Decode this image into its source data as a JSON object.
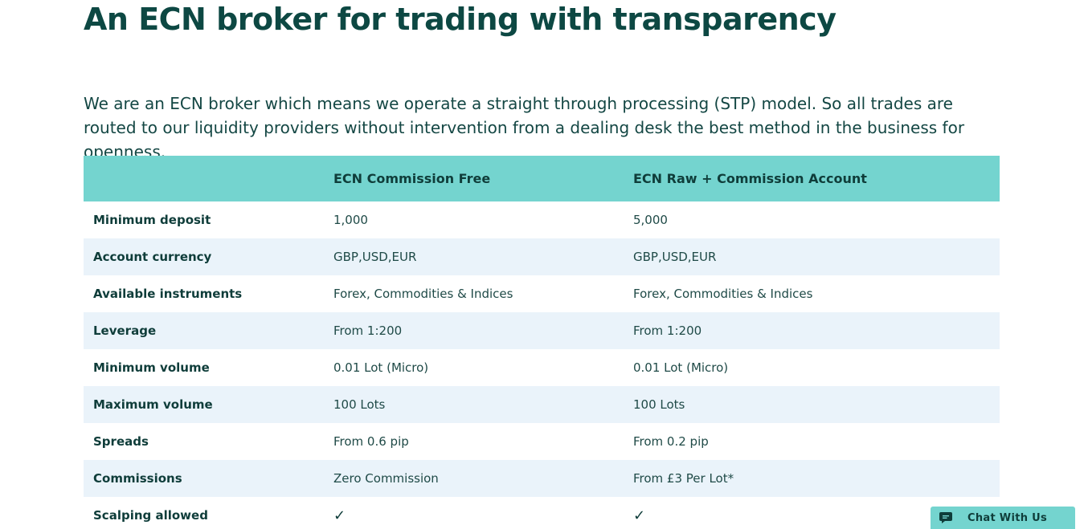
{
  "heading": "An ECN broker for trading with transparency",
  "intro": "We are an ECN broker which means we operate a straight through processing (STP) model. So all trades are routed to our liquidity providers without intervention from a dealing desk the best method in the business for openness.",
  "table": {
    "headers": [
      "",
      "ECN Commission Free",
      "ECN Raw + Commission Account"
    ],
    "rows": [
      {
        "label": "Minimum deposit",
        "free": "1,000",
        "raw": "5,000"
      },
      {
        "label": "Account currency",
        "free": "GBP,USD,EUR",
        "raw": "GBP,USD,EUR"
      },
      {
        "label": "Available instruments",
        "free": "Forex, Commodities & Indices",
        "raw": "Forex, Commodities & Indices"
      },
      {
        "label": "Leverage",
        "free": "From 1:200",
        "raw": "From 1:200"
      },
      {
        "label": "Minimum volume",
        "free": "0.01 Lot (Micro)",
        "raw": "0.01 Lot (Micro)"
      },
      {
        "label": "Maximum volume",
        "free": "100 Lots",
        "raw": "100 Lots"
      },
      {
        "label": "Spreads",
        "free": "From 0.6 pip",
        "raw": "From 0.2 pip"
      },
      {
        "label": "Commissions",
        "free": "Zero Commission",
        "raw": "From £3 Per Lot*"
      },
      {
        "label": "Scalping allowed",
        "free": "✓",
        "raw": "✓"
      }
    ]
  },
  "chat": {
    "label": "Chat With Us",
    "icon": "chat-bubble-icon"
  },
  "colors": {
    "heading": "#0d4843",
    "table_header_bg": "#74d4cf",
    "row_alt_bg": "#eaf3fa"
  }
}
